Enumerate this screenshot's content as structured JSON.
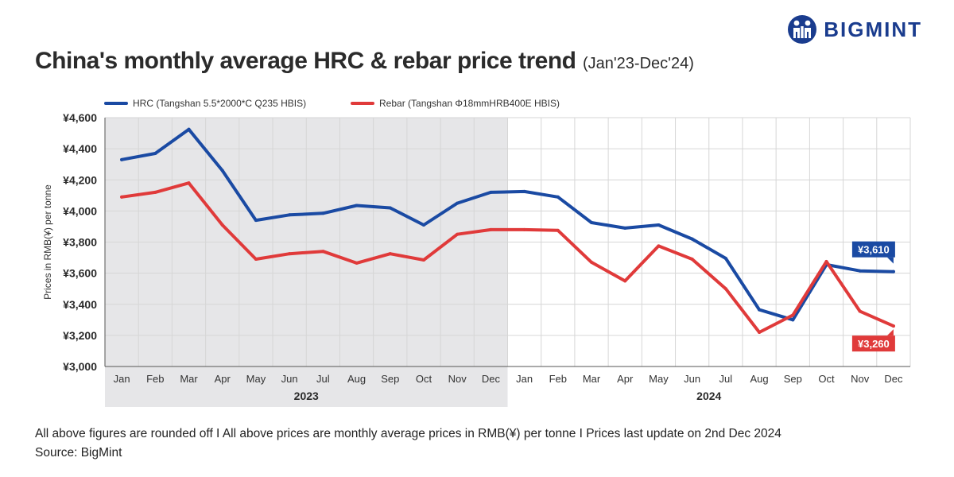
{
  "brand": {
    "name": "BIGMINT",
    "logo_color": "#1a3c8e"
  },
  "chart_data": {
    "type": "line",
    "title": "China's monthly average HRC & rebar price trend",
    "subtitle": "(Jan'23-Dec'24)",
    "ylabel": "Prices in RMB(¥) per tonne",
    "xlabel": "",
    "ylim": [
      3000,
      4600
    ],
    "y_ticks": [
      {
        "value": 3000,
        "label": "¥3,000"
      },
      {
        "value": 3200,
        "label": "¥3,200"
      },
      {
        "value": 3400,
        "label": "¥3,400"
      },
      {
        "value": 3600,
        "label": "¥3,600"
      },
      {
        "value": 3800,
        "label": "¥3,800"
      },
      {
        "value": 4000,
        "label": "¥4,000"
      },
      {
        "value": 4200,
        "label": "¥4,200"
      },
      {
        "value": 4400,
        "label": "¥4,400"
      },
      {
        "value": 4600,
        "label": "¥4,600"
      }
    ],
    "categories": [
      "Jan",
      "Feb",
      "Mar",
      "Apr",
      "May",
      "Jun",
      "Jul",
      "Aug",
      "Sep",
      "Oct",
      "Nov",
      "Dec",
      "Jan",
      "Feb",
      "Mar",
      "Apr",
      "May",
      "Jun",
      "Jul",
      "Aug",
      "Sep",
      "Oct",
      "Nov",
      "Dec"
    ],
    "year_groups": [
      {
        "label": "2023",
        "start": 0,
        "end": 11,
        "shaded": true
      },
      {
        "label": "2024",
        "start": 12,
        "end": 23,
        "shaded": false
      }
    ],
    "grid": true,
    "legend_position": "top-left",
    "series": [
      {
        "name": "HRC (Tangshan 5.5*2000*C Q235 HBIS)",
        "color": "#1a4aa3",
        "values": [
          4330,
          4370,
          4525,
          4260,
          3940,
          3975,
          3985,
          4035,
          4020,
          3910,
          4050,
          4120,
          4125,
          4090,
          3925,
          3890,
          3910,
          3820,
          3695,
          3365,
          3300,
          3655,
          3615,
          3610
        ],
        "end_label": "¥3,610"
      },
      {
        "name": "Rebar (Tangshan Φ18mmHRB400E HBIS)",
        "color": "#e03a3a",
        "values": [
          4090,
          4120,
          4180,
          3910,
          3690,
          3725,
          3740,
          3665,
          3725,
          3685,
          3850,
          3880,
          3880,
          3875,
          3670,
          3550,
          3775,
          3690,
          3500,
          3220,
          3330,
          3675,
          3355,
          3260
        ],
        "end_label": "¥3,260"
      }
    ]
  },
  "footer": {
    "note": "All above figures are rounded off  I  All above prices are monthly average prices in RMB(¥) per tonne  I  Prices last update on 2nd Dec 2024",
    "source": "Source: BigMint"
  }
}
